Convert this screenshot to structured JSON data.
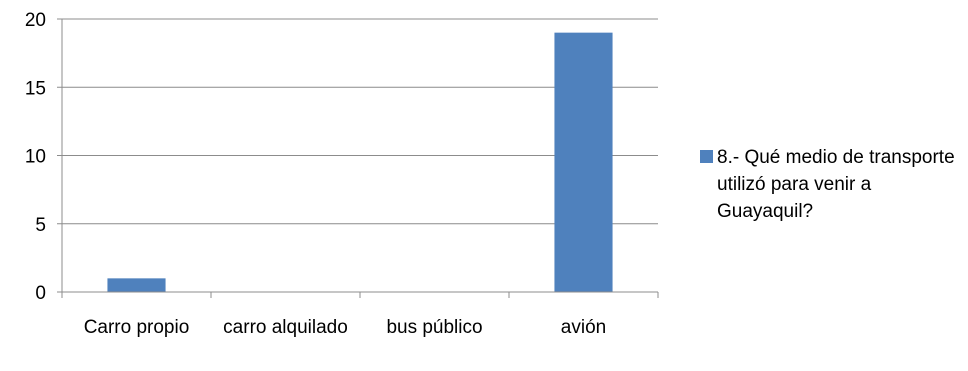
{
  "chart_data": {
    "type": "bar",
    "categories": [
      "Carro propio",
      "carro alquilado",
      "bus público",
      "avión"
    ],
    "series": [
      {
        "name": "8.- Qué medio de transporte utilizó para venir a Guayaquil?",
        "values": [
          1,
          0,
          0,
          19
        ],
        "color": "#4F81BD"
      }
    ],
    "ylim": [
      0,
      20
    ],
    "yticks": [
      0,
      5,
      10,
      15,
      20
    ],
    "grid": true,
    "legend": "right",
    "title": "",
    "xlabel": "",
    "ylabel": ""
  }
}
